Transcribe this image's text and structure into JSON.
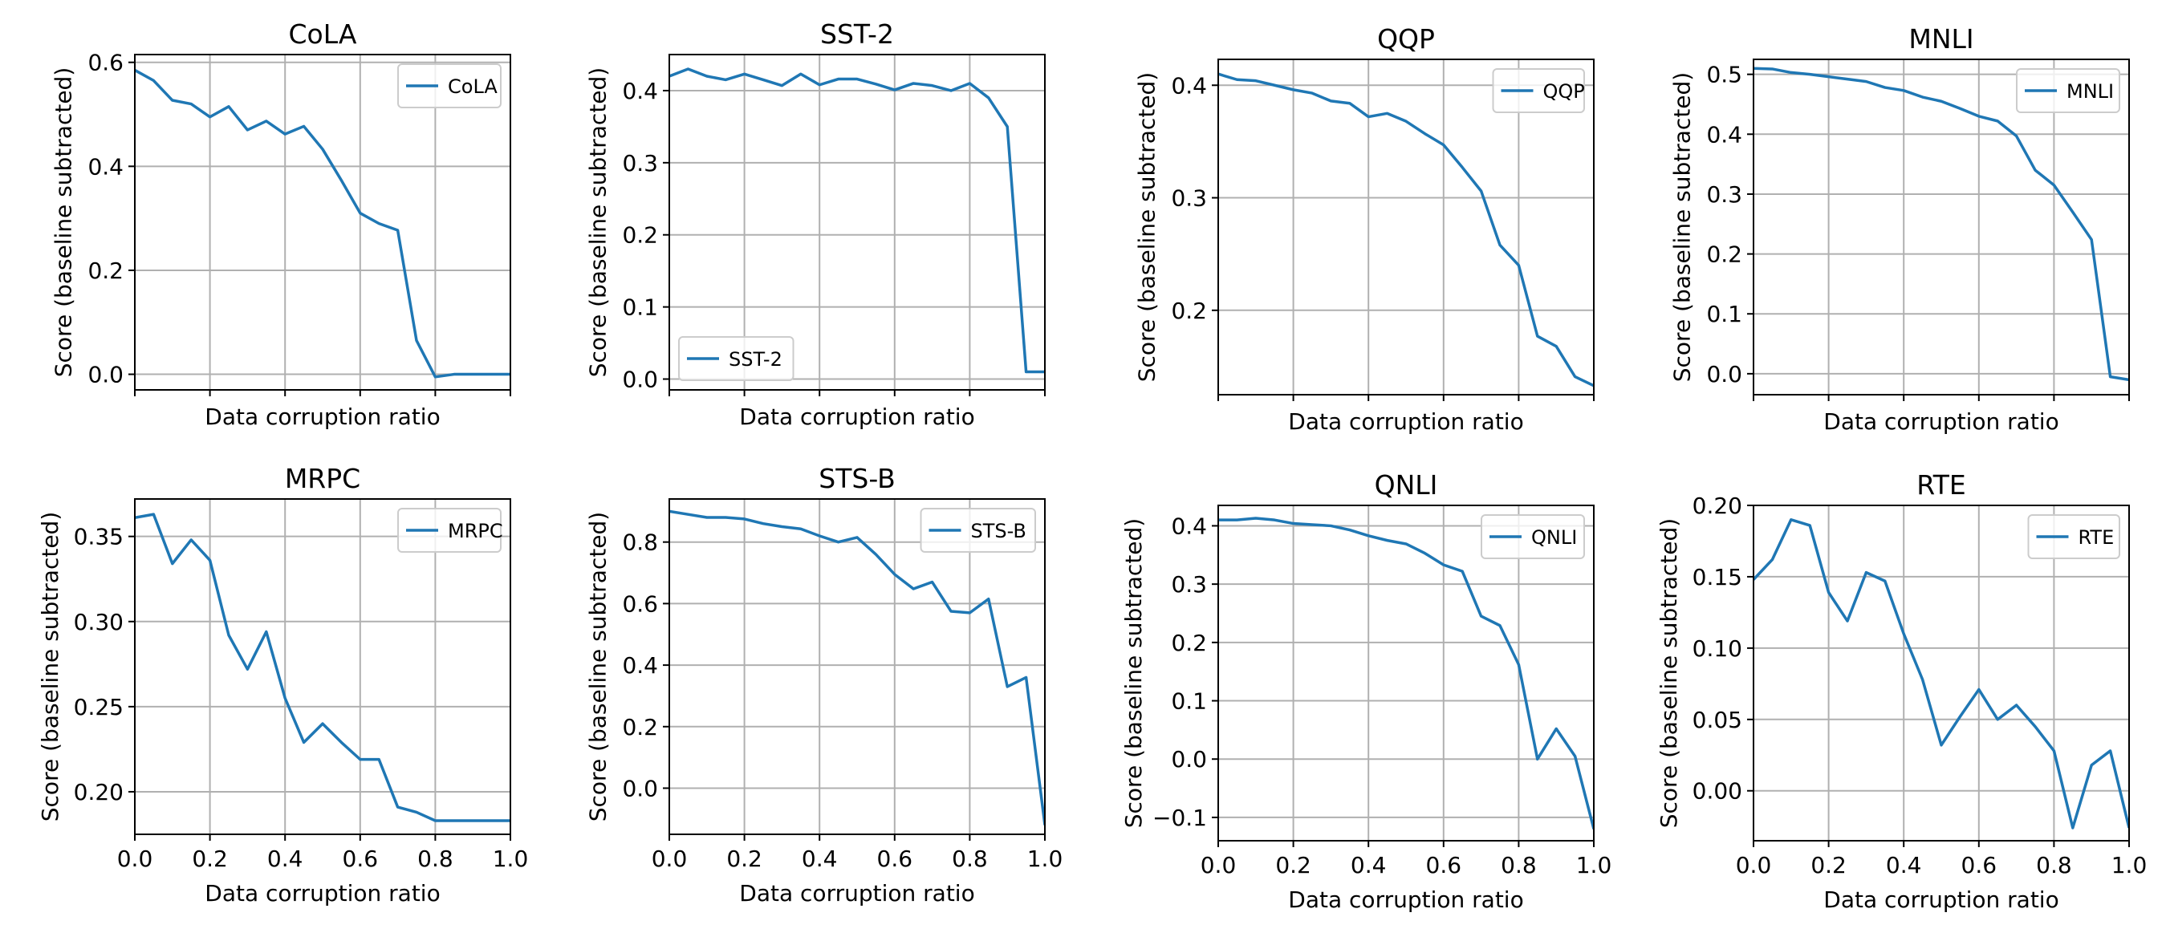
{
  "colors": {
    "series": "#1f77b4",
    "grid": "#b0b0b0"
  },
  "chart_data": [
    {
      "type": "line",
      "title": "CoLA",
      "xlabel": "Data corruption ratio",
      "ylabel": "Score (baseline subtracted)",
      "xlim": [
        0.0,
        1.0
      ],
      "ylim": [
        -0.03,
        0.615
      ],
      "xticks": [
        0.0,
        0.2,
        0.4,
        0.6,
        0.8,
        1.0
      ],
      "xtick_labels": [],
      "yticks": [
        0.0,
        0.2,
        0.4,
        0.6
      ],
      "ytick_labels": [
        "0.0",
        "0.2",
        "0.4",
        "0.6"
      ],
      "grid": true,
      "legend": "top-right",
      "x": [
        0.0,
        0.05,
        0.1,
        0.15,
        0.2,
        0.25,
        0.3,
        0.35,
        0.4,
        0.45,
        0.5,
        0.55,
        0.6,
        0.65,
        0.7,
        0.75,
        0.8,
        0.85,
        0.9,
        0.95,
        1.0
      ],
      "series": [
        {
          "name": "CoLA",
          "values": [
            0.585,
            0.565,
            0.527,
            0.52,
            0.495,
            0.515,
            0.47,
            0.487,
            0.462,
            0.477,
            0.433,
            0.373,
            0.31,
            0.29,
            0.277,
            0.065,
            -0.005,
            0.0,
            0.0,
            0.0,
            0.0
          ]
        }
      ]
    },
    {
      "type": "line",
      "title": "SST-2",
      "xlabel": "Data corruption ratio",
      "ylabel": "Score (baseline subtracted)",
      "xlim": [
        0.0,
        1.0
      ],
      "ylim": [
        -0.015,
        0.45
      ],
      "xticks": [
        0.0,
        0.2,
        0.4,
        0.6,
        0.8,
        1.0
      ],
      "xtick_labels": [],
      "yticks": [
        0.0,
        0.1,
        0.2,
        0.3,
        0.4
      ],
      "ytick_labels": [
        "0.0",
        "0.1",
        "0.2",
        "0.3",
        "0.4"
      ],
      "grid": true,
      "legend": "bottom-left",
      "x": [
        0.0,
        0.05,
        0.1,
        0.15,
        0.2,
        0.25,
        0.3,
        0.35,
        0.4,
        0.45,
        0.5,
        0.55,
        0.6,
        0.65,
        0.7,
        0.75,
        0.8,
        0.85,
        0.9,
        0.95,
        1.0
      ],
      "series": [
        {
          "name": "SST-2",
          "values": [
            0.42,
            0.43,
            0.42,
            0.415,
            0.423,
            0.415,
            0.407,
            0.423,
            0.408,
            0.416,
            0.416,
            0.409,
            0.401,
            0.41,
            0.407,
            0.4,
            0.41,
            0.39,
            0.35,
            0.01,
            0.01
          ]
        }
      ]
    },
    {
      "type": "line",
      "title": "QQP",
      "xlabel": "Data corruption ratio",
      "ylabel": "Score (baseline subtracted)",
      "xlim": [
        0.0,
        1.0
      ],
      "ylim": [
        0.125,
        0.423
      ],
      "xticks": [
        0.0,
        0.2,
        0.4,
        0.6,
        0.8,
        1.0
      ],
      "xtick_labels": [],
      "yticks": [
        0.2,
        0.3,
        0.4
      ],
      "ytick_labels": [
        "0.2",
        "0.3",
        "0.4"
      ],
      "grid": true,
      "legend": "top-right",
      "x": [
        0.0,
        0.05,
        0.1,
        0.15,
        0.2,
        0.25,
        0.3,
        0.35,
        0.4,
        0.45,
        0.5,
        0.55,
        0.6,
        0.65,
        0.7,
        0.75,
        0.8,
        0.85,
        0.9,
        0.95,
        1.0
      ],
      "series": [
        {
          "name": "QQP",
          "values": [
            0.41,
            0.405,
            0.404,
            0.4,
            0.396,
            0.393,
            0.386,
            0.384,
            0.372,
            0.375,
            0.368,
            0.357,
            0.347,
            0.327,
            0.306,
            0.258,
            0.24,
            0.177,
            0.168,
            0.141,
            0.133
          ]
        }
      ]
    },
    {
      "type": "line",
      "title": "MNLI",
      "xlabel": "Data corruption ratio",
      "ylabel": "Score (baseline subtracted)",
      "xlim": [
        0.0,
        1.0
      ],
      "ylim": [
        -0.035,
        0.525
      ],
      "xticks": [
        0.0,
        0.2,
        0.4,
        0.6,
        0.8,
        1.0
      ],
      "xtick_labels": [],
      "yticks": [
        0.0,
        0.1,
        0.2,
        0.3,
        0.4,
        0.5
      ],
      "ytick_labels": [
        "0.0",
        "0.1",
        "0.2",
        "0.3",
        "0.4",
        "0.5"
      ],
      "grid": true,
      "legend": "top-right",
      "x": [
        0.0,
        0.05,
        0.1,
        0.15,
        0.2,
        0.25,
        0.3,
        0.35,
        0.4,
        0.45,
        0.5,
        0.55,
        0.6,
        0.65,
        0.7,
        0.75,
        0.8,
        0.85,
        0.9,
        0.95,
        1.0
      ],
      "series": [
        {
          "name": "MNLI",
          "values": [
            0.51,
            0.509,
            0.503,
            0.5,
            0.496,
            0.492,
            0.488,
            0.478,
            0.473,
            0.462,
            0.455,
            0.443,
            0.43,
            0.422,
            0.397,
            0.34,
            0.315,
            0.27,
            0.224,
            -0.005,
            -0.01
          ]
        }
      ]
    },
    {
      "type": "line",
      "title": "MRPC",
      "xlabel": "Data corruption ratio",
      "ylabel": "Score (baseline subtracted)",
      "xlim": [
        0.0,
        1.0
      ],
      "ylim": [
        0.175,
        0.372
      ],
      "xticks": [
        0.0,
        0.2,
        0.4,
        0.6,
        0.8,
        1.0
      ],
      "xtick_labels": [
        "0.0",
        "0.2",
        "0.4",
        "0.6",
        "0.8",
        "1.0"
      ],
      "yticks": [
        0.2,
        0.25,
        0.3,
        0.35
      ],
      "ytick_labels": [
        "0.20",
        "0.25",
        "0.30",
        "0.35"
      ],
      "grid": true,
      "legend": "top-right",
      "x": [
        0.0,
        0.05,
        0.1,
        0.15,
        0.2,
        0.25,
        0.3,
        0.35,
        0.4,
        0.45,
        0.5,
        0.55,
        0.6,
        0.65,
        0.7,
        0.75,
        0.8,
        0.85,
        0.9,
        0.95,
        1.0
      ],
      "series": [
        {
          "name": "MRPC",
          "values": [
            0.361,
            0.363,
            0.334,
            0.348,
            0.336,
            0.292,
            0.272,
            0.294,
            0.255,
            0.229,
            0.24,
            0.229,
            0.219,
            0.219,
            0.191,
            0.188,
            0.183,
            0.183,
            0.183,
            0.183,
            0.183
          ]
        }
      ]
    },
    {
      "type": "line",
      "title": "STS-B",
      "xlabel": "Data corruption ratio",
      "ylabel": "Score (baseline subtracted)",
      "xlim": [
        0.0,
        1.0
      ],
      "ylim": [
        -0.15,
        0.94
      ],
      "xticks": [
        0.0,
        0.2,
        0.4,
        0.6,
        0.8,
        1.0
      ],
      "xtick_labels": [
        "0.0",
        "0.2",
        "0.4",
        "0.6",
        "0.8",
        "1.0"
      ],
      "yticks": [
        0.0,
        0.2,
        0.4,
        0.6,
        0.8
      ],
      "ytick_labels": [
        "0.0",
        "0.2",
        "0.4",
        "0.6",
        "0.8"
      ],
      "grid": true,
      "legend": "top-right",
      "x": [
        0.0,
        0.05,
        0.1,
        0.15,
        0.2,
        0.25,
        0.3,
        0.35,
        0.4,
        0.45,
        0.5,
        0.55,
        0.6,
        0.65,
        0.7,
        0.75,
        0.8,
        0.85,
        0.9,
        0.95,
        1.0
      ],
      "series": [
        {
          "name": "STS-B",
          "values": [
            0.9,
            0.89,
            0.88,
            0.88,
            0.875,
            0.86,
            0.85,
            0.843,
            0.82,
            0.8,
            0.815,
            0.76,
            0.695,
            0.648,
            0.67,
            0.575,
            0.57,
            0.615,
            0.33,
            0.36,
            -0.12
          ]
        }
      ]
    },
    {
      "type": "line",
      "title": "QNLI",
      "xlabel": "Data corruption ratio",
      "ylabel": "Score (baseline subtracted)",
      "xlim": [
        0.0,
        1.0
      ],
      "ylim": [
        -0.14,
        0.435
      ],
      "xticks": [
        0.0,
        0.2,
        0.4,
        0.6,
        0.8,
        1.0
      ],
      "xtick_labels": [
        "0.0",
        "0.2",
        "0.4",
        "0.6",
        "0.8",
        "1.0"
      ],
      "yticks": [
        -0.1,
        0.0,
        0.1,
        0.2,
        0.3,
        0.4
      ],
      "ytick_labels": [
        "−0.1",
        "0.0",
        "0.1",
        "0.2",
        "0.3",
        "0.4"
      ],
      "grid": true,
      "legend": "top-right",
      "x": [
        0.0,
        0.05,
        0.1,
        0.15,
        0.2,
        0.25,
        0.3,
        0.35,
        0.4,
        0.45,
        0.5,
        0.55,
        0.6,
        0.65,
        0.7,
        0.75,
        0.8,
        0.85,
        0.9,
        0.95,
        1.0
      ],
      "series": [
        {
          "name": "QNLI",
          "values": [
            0.41,
            0.41,
            0.413,
            0.41,
            0.404,
            0.402,
            0.4,
            0.393,
            0.383,
            0.375,
            0.369,
            0.353,
            0.333,
            0.322,
            0.245,
            0.229,
            0.162,
            0.0,
            0.052,
            0.005,
            -0.12
          ]
        }
      ]
    },
    {
      "type": "line",
      "title": "RTE",
      "xlabel": "Data corruption ratio",
      "ylabel": "Score (baseline subtracted)",
      "xlim": [
        0.0,
        1.0
      ],
      "ylim": [
        -0.035,
        0.2
      ],
      "xticks": [
        0.0,
        0.2,
        0.4,
        0.6,
        0.8,
        1.0
      ],
      "xtick_labels": [
        "0.0",
        "0.2",
        "0.4",
        "0.6",
        "0.8",
        "1.0"
      ],
      "yticks": [
        0.0,
        0.05,
        0.1,
        0.15,
        0.2
      ],
      "ytick_labels": [
        "0.00",
        "0.05",
        "0.10",
        "0.15",
        "0.20"
      ],
      "grid": true,
      "legend": "top-right",
      "x": [
        0.0,
        0.05,
        0.1,
        0.15,
        0.2,
        0.25,
        0.3,
        0.35,
        0.4,
        0.45,
        0.5,
        0.55,
        0.6,
        0.65,
        0.7,
        0.75,
        0.8,
        0.85,
        0.9,
        0.95,
        1.0
      ],
      "series": [
        {
          "name": "RTE",
          "values": [
            0.148,
            0.162,
            0.19,
            0.186,
            0.139,
            0.119,
            0.153,
            0.147,
            0.11,
            0.078,
            0.032,
            0.052,
            0.071,
            0.05,
            0.06,
            0.045,
            0.028,
            -0.026,
            0.018,
            0.028,
            -0.026
          ]
        }
      ]
    }
  ]
}
